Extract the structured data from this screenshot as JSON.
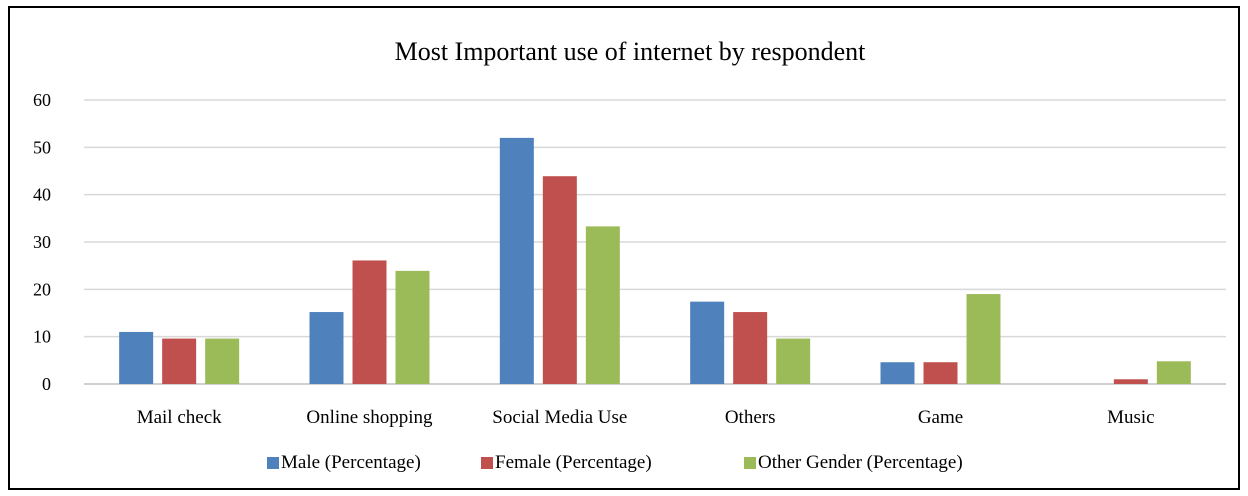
{
  "chart_data": {
    "type": "bar",
    "title": "Most Important use of internet by respondent",
    "xlabel": "",
    "ylabel": "",
    "ylim": [
      0,
      60
    ],
    "yticks": [
      0,
      10,
      20,
      30,
      40,
      50,
      60
    ],
    "grid": true,
    "legend_position": "bottom",
    "categories": [
      "Mail check",
      "Online shopping",
      "Social Media Use",
      "Others",
      "Game",
      "Music"
    ],
    "series": [
      {
        "name": "Male (Percentage)",
        "color": "#4f81bd",
        "values": [
          11,
          15.2,
          52,
          17.4,
          4.6,
          0
        ]
      },
      {
        "name": "Female (Percentage)",
        "color": "#c0504d",
        "values": [
          9.6,
          26.1,
          43.9,
          15.2,
          4.6,
          1
        ]
      },
      {
        "name": "Other Gender (Percentage)",
        "color": "#9bbb59",
        "values": [
          9.6,
          23.9,
          33.3,
          9.6,
          19,
          4.8
        ]
      }
    ]
  }
}
